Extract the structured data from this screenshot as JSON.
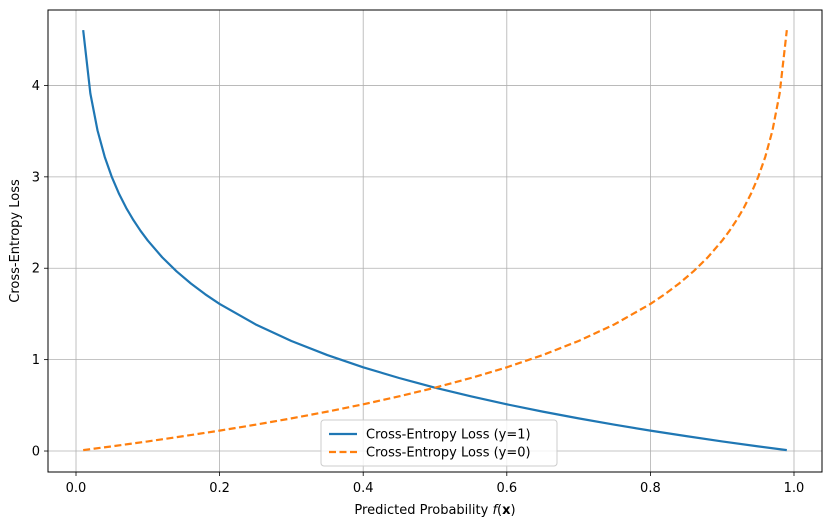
{
  "chart_data": {
    "type": "line",
    "title": "",
    "xlabel": "Predicted Probability f(x)",
    "xlabel_parts": [
      "Predicted Probability ",
      "f",
      "(",
      "x",
      ")"
    ],
    "ylabel": "Cross-Entropy Loss",
    "xlim": [
      -0.039,
      1.039
    ],
    "ylim": [
      -0.2296,
      4.8256
    ],
    "xticks": [
      0.0,
      0.2,
      0.4,
      0.6,
      0.8,
      1.0
    ],
    "xtick_labels": [
      "0.0",
      "0.2",
      "0.4",
      "0.6",
      "0.8",
      "1.0"
    ],
    "yticks": [
      0,
      1,
      2,
      3,
      4
    ],
    "ytick_labels": [
      "0",
      "1",
      "2",
      "3",
      "4"
    ],
    "grid": true,
    "legend_position": "lower center",
    "series": [
      {
        "name": "Cross-Entropy Loss (y=1)",
        "color": "#1f77b4",
        "style": "solid",
        "x": [
          0.01,
          0.02,
          0.03,
          0.04,
          0.05,
          0.06,
          0.07,
          0.08,
          0.09,
          0.1,
          0.12,
          0.14,
          0.16,
          0.18,
          0.2,
          0.25,
          0.3,
          0.35,
          0.4,
          0.45,
          0.5,
          0.55,
          0.6,
          0.65,
          0.7,
          0.75,
          0.8,
          0.85,
          0.9,
          0.95,
          0.99
        ],
        "y": [
          4.605,
          3.912,
          3.507,
          3.219,
          2.996,
          2.813,
          2.659,
          2.526,
          2.408,
          2.303,
          2.12,
          1.966,
          1.833,
          1.715,
          1.609,
          1.386,
          1.204,
          1.05,
          0.916,
          0.799,
          0.693,
          0.598,
          0.511,
          0.431,
          0.357,
          0.288,
          0.223,
          0.163,
          0.105,
          0.051,
          0.01
        ]
      },
      {
        "name": "Cross-Entropy Loss (y=0)",
        "color": "#ff7f0e",
        "style": "dashed",
        "x": [
          0.01,
          0.05,
          0.1,
          0.15,
          0.2,
          0.25,
          0.3,
          0.35,
          0.4,
          0.45,
          0.5,
          0.55,
          0.6,
          0.65,
          0.7,
          0.75,
          0.8,
          0.82,
          0.84,
          0.86,
          0.88,
          0.9,
          0.91,
          0.92,
          0.93,
          0.94,
          0.95,
          0.96,
          0.97,
          0.98,
          0.99
        ],
        "y": [
          0.01,
          0.051,
          0.105,
          0.163,
          0.223,
          0.288,
          0.357,
          0.431,
          0.511,
          0.598,
          0.693,
          0.799,
          0.916,
          1.05,
          1.204,
          1.386,
          1.609,
          1.715,
          1.833,
          1.966,
          2.12,
          2.303,
          2.408,
          2.526,
          2.659,
          2.813,
          2.996,
          3.219,
          3.507,
          3.912,
          4.605
        ]
      }
    ]
  }
}
